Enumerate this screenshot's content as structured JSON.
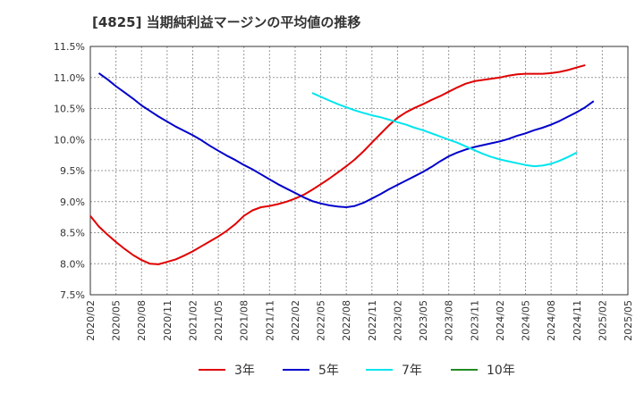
{
  "chart_data": {
    "type": "line",
    "title": "[4825]  当期純利益マージンの平均値の推移",
    "ylim": [
      7.5,
      11.5
    ],
    "y_ticks": [
      "11.5%",
      "11.0%",
      "10.5%",
      "10.0%",
      "9.5%",
      "9.0%",
      "8.5%",
      "8.0%",
      "7.5%"
    ],
    "y_tick_values": [
      11.5,
      11.0,
      10.5,
      10.0,
      9.5,
      9.0,
      8.5,
      8.0,
      7.5
    ],
    "x_ticks": [
      "2020/02",
      "2020/05",
      "2020/08",
      "2020/11",
      "2021/02",
      "2021/05",
      "2021/08",
      "2021/11",
      "2022/02",
      "2022/05",
      "2022/08",
      "2022/11",
      "2023/02",
      "2023/05",
      "2023/08",
      "2023/11",
      "2024/02",
      "2024/05",
      "2024/08",
      "2024/11",
      "2025/02",
      "2025/05"
    ],
    "grid": true,
    "legend_position": "bottom",
    "series": [
      {
        "name": "3年",
        "color": "#e00000",
        "points": [
          [
            "2020/02",
            8.77
          ],
          [
            "2020/03",
            8.6
          ],
          [
            "2020/04",
            8.47
          ],
          [
            "2020/05",
            8.35
          ],
          [
            "2020/06",
            8.24
          ],
          [
            "2020/07",
            8.14
          ],
          [
            "2020/08",
            8.06
          ],
          [
            "2020/09",
            8.0
          ],
          [
            "2020/10",
            7.99
          ],
          [
            "2020/11",
            8.03
          ],
          [
            "2020/12",
            8.07
          ],
          [
            "2021/01",
            8.13
          ],
          [
            "2021/02",
            8.2
          ],
          [
            "2021/03",
            8.28
          ],
          [
            "2021/04",
            8.36
          ],
          [
            "2021/05",
            8.44
          ],
          [
            "2021/06",
            8.53
          ],
          [
            "2021/07",
            8.64
          ],
          [
            "2021/08",
            8.77
          ],
          [
            "2021/09",
            8.86
          ],
          [
            "2021/10",
            8.91
          ],
          [
            "2021/11",
            8.93
          ],
          [
            "2021/12",
            8.96
          ],
          [
            "2022/01",
            9.0
          ],
          [
            "2022/02",
            9.05
          ],
          [
            "2022/03",
            9.11
          ],
          [
            "2022/04",
            9.19
          ],
          [
            "2022/05",
            9.28
          ],
          [
            "2022/06",
            9.37
          ],
          [
            "2022/07",
            9.47
          ],
          [
            "2022/08",
            9.57
          ],
          [
            "2022/09",
            9.68
          ],
          [
            "2022/10",
            9.81
          ],
          [
            "2022/11",
            9.95
          ],
          [
            "2022/12",
            10.09
          ],
          [
            "2023/01",
            10.23
          ],
          [
            "2023/02",
            10.35
          ],
          [
            "2023/03",
            10.44
          ],
          [
            "2023/04",
            10.51
          ],
          [
            "2023/05",
            10.57
          ],
          [
            "2023/06",
            10.64
          ],
          [
            "2023/07",
            10.7
          ],
          [
            "2023/08",
            10.77
          ],
          [
            "2023/09",
            10.84
          ],
          [
            "2023/10",
            10.9
          ],
          [
            "2023/11",
            10.94
          ],
          [
            "2023/12",
            10.96
          ],
          [
            "2024/01",
            10.98
          ],
          [
            "2024/02",
            11.0
          ],
          [
            "2024/03",
            11.03
          ],
          [
            "2024/04",
            11.05
          ],
          [
            "2024/05",
            11.06
          ],
          [
            "2024/06",
            11.06
          ],
          [
            "2024/07",
            11.06
          ],
          [
            "2024/08",
            11.07
          ],
          [
            "2024/09",
            11.09
          ],
          [
            "2024/10",
            11.12
          ],
          [
            "2024/11",
            11.16
          ],
          [
            "2024/12",
            11.2
          ]
        ]
      },
      {
        "name": "5年",
        "color": "#0000cc",
        "points": [
          [
            "2020/03",
            11.07
          ],
          [
            "2020/04",
            10.97
          ],
          [
            "2020/05",
            10.86
          ],
          [
            "2020/06",
            10.76
          ],
          [
            "2020/07",
            10.66
          ],
          [
            "2020/08",
            10.55
          ],
          [
            "2020/09",
            10.46
          ],
          [
            "2020/10",
            10.37
          ],
          [
            "2020/11",
            10.29
          ],
          [
            "2020/12",
            10.21
          ],
          [
            "2021/01",
            10.14
          ],
          [
            "2021/02",
            10.07
          ],
          [
            "2021/03",
            9.99
          ],
          [
            "2021/04",
            9.9
          ],
          [
            "2021/05",
            9.82
          ],
          [
            "2021/06",
            9.74
          ],
          [
            "2021/07",
            9.67
          ],
          [
            "2021/08",
            9.59
          ],
          [
            "2021/09",
            9.52
          ],
          [
            "2021/10",
            9.44
          ],
          [
            "2021/11",
            9.36
          ],
          [
            "2021/12",
            9.28
          ],
          [
            "2022/01",
            9.21
          ],
          [
            "2022/02",
            9.14
          ],
          [
            "2022/03",
            9.07
          ],
          [
            "2022/04",
            9.01
          ],
          [
            "2022/05",
            8.97
          ],
          [
            "2022/06",
            8.94
          ],
          [
            "2022/07",
            8.92
          ],
          [
            "2022/08",
            8.91
          ],
          [
            "2022/09",
            8.93
          ],
          [
            "2022/10",
            8.98
          ],
          [
            "2022/11",
            9.05
          ],
          [
            "2022/12",
            9.12
          ],
          [
            "2023/01",
            9.2
          ],
          [
            "2023/02",
            9.27
          ],
          [
            "2023/03",
            9.34
          ],
          [
            "2023/04",
            9.41
          ],
          [
            "2023/05",
            9.48
          ],
          [
            "2023/06",
            9.56
          ],
          [
            "2023/07",
            9.65
          ],
          [
            "2023/08",
            9.73
          ],
          [
            "2023/09",
            9.79
          ],
          [
            "2023/10",
            9.84
          ],
          [
            "2023/11",
            9.88
          ],
          [
            "2023/12",
            9.91
          ],
          [
            "2024/01",
            9.94
          ],
          [
            "2024/02",
            9.97
          ],
          [
            "2024/03",
            10.01
          ],
          [
            "2024/04",
            10.06
          ],
          [
            "2024/05",
            10.1
          ],
          [
            "2024/06",
            10.15
          ],
          [
            "2024/07",
            10.19
          ],
          [
            "2024/08",
            10.24
          ],
          [
            "2024/09",
            10.3
          ],
          [
            "2024/10",
            10.37
          ],
          [
            "2024/11",
            10.44
          ],
          [
            "2024/12",
            10.52
          ],
          [
            "2025/01",
            10.62
          ]
        ]
      },
      {
        "name": "7年",
        "color": "#00e5ee",
        "points": [
          [
            "2022/04",
            10.75
          ],
          [
            "2022/05",
            10.69
          ],
          [
            "2022/06",
            10.63
          ],
          [
            "2022/07",
            10.57
          ],
          [
            "2022/08",
            10.52
          ],
          [
            "2022/09",
            10.47
          ],
          [
            "2022/10",
            10.43
          ],
          [
            "2022/11",
            10.39
          ],
          [
            "2022/12",
            10.36
          ],
          [
            "2023/01",
            10.32
          ],
          [
            "2023/02",
            10.28
          ],
          [
            "2023/03",
            10.24
          ],
          [
            "2023/04",
            10.19
          ],
          [
            "2023/05",
            10.15
          ],
          [
            "2023/06",
            10.1
          ],
          [
            "2023/07",
            10.05
          ],
          [
            "2023/08",
            10.0
          ],
          [
            "2023/09",
            9.95
          ],
          [
            "2023/10",
            9.89
          ],
          [
            "2023/11",
            9.83
          ],
          [
            "2023/12",
            9.77
          ],
          [
            "2024/01",
            9.72
          ],
          [
            "2024/02",
            9.68
          ],
          [
            "2024/03",
            9.65
          ],
          [
            "2024/04",
            9.62
          ],
          [
            "2024/05",
            9.59
          ],
          [
            "2024/06",
            9.57
          ],
          [
            "2024/07",
            9.58
          ],
          [
            "2024/08",
            9.61
          ],
          [
            "2024/09",
            9.66
          ],
          [
            "2024/10",
            9.72
          ],
          [
            "2024/11",
            9.79
          ]
        ]
      },
      {
        "name": "10年",
        "color": "#228b22",
        "points": []
      }
    ]
  }
}
